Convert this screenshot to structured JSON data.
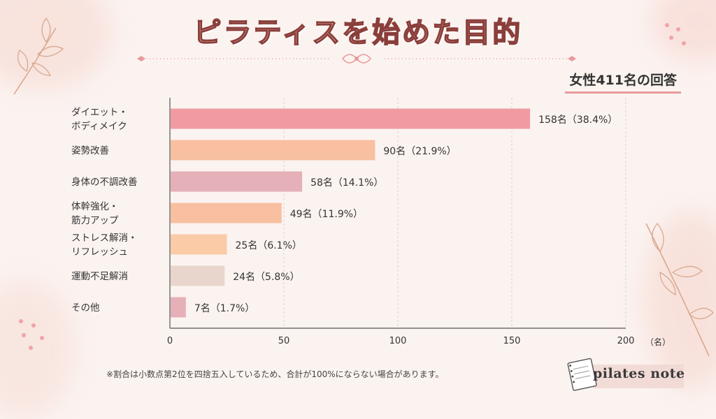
{
  "title": "ピラティスを始めた目的",
  "subtitle": "女性411名の回答",
  "footnote": "※割合は小数点第2位を四捨五入しているため、合計が100%にならない場合があります。",
  "brand": "pilates note",
  "colors": {
    "bar_colors": [
      "#f19aa2",
      "#f8c0a0",
      "#e5b0b8",
      "#f8c0a0",
      "#fbcaa6",
      "#e8d6cc",
      "#e5b0b8"
    ],
    "accent": "#e99a9c",
    "title_stroke": "#8a3e3a"
  },
  "chart_data": {
    "type": "bar",
    "orientation": "horizontal",
    "categories": [
      [
        "ダイエット・",
        "ボディメイク"
      ],
      [
        "姿勢改善"
      ],
      [
        "身体の不調改善"
      ],
      [
        "体幹強化・",
        "筋力アップ"
      ],
      [
        "ストレス解消・",
        "リフレッシュ"
      ],
      [
        "運動不足解消"
      ],
      [
        "その他"
      ]
    ],
    "values": [
      158,
      90,
      58,
      49,
      25,
      24,
      7
    ],
    "data_labels": [
      "158名（38.4%）",
      "90名（21.9%）",
      "58名（14.1%）",
      "49名（11.9%）",
      "25名（6.1%）",
      "24名（5.8%）",
      "7名（1.7%）"
    ],
    "xlim": [
      0,
      200
    ],
    "xticks": [
      0,
      50,
      100,
      150,
      200
    ],
    "xunit": "（名）",
    "grid": true
  }
}
